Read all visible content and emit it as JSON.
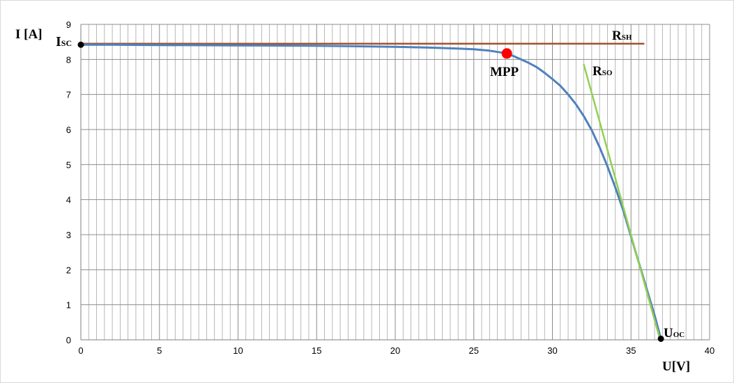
{
  "chart_data": {
    "type": "line",
    "title": "",
    "xlabel": "U[V]",
    "ylabel": "I [A]",
    "xlim": [
      0,
      40
    ],
    "ylim": [
      0,
      9
    ],
    "x_ticks": [
      "0",
      "5",
      "10",
      "15",
      "20",
      "25",
      "30",
      "35",
      "40"
    ],
    "y_ticks": [
      "0",
      "1",
      "2",
      "3",
      "4",
      "5",
      "6",
      "7",
      "8",
      "9"
    ],
    "grid": true,
    "series": [
      {
        "color": "#4f81bd",
        "x": [
          0,
          2,
          5,
          10,
          15,
          20,
          22,
          24,
          25,
          26,
          27,
          27.5,
          28,
          28.5,
          29,
          29.5,
          30,
          30.5,
          31,
          31.5,
          32,
          32.5,
          33,
          33.5,
          34,
          34.5,
          35,
          35.5,
          36,
          36.5,
          36.9
        ],
        "y": [
          8.42,
          8.42,
          8.41,
          8.4,
          8.39,
          8.36,
          8.34,
          8.31,
          8.29,
          8.25,
          8.18,
          8.1,
          8.0,
          7.9,
          7.78,
          7.62,
          7.44,
          7.25,
          7.0,
          6.72,
          6.38,
          5.98,
          5.5,
          4.95,
          4.35,
          3.7,
          2.95,
          2.2,
          1.45,
          0.7,
          0.03
        ]
      },
      {
        "name": "RSH",
        "color": "#a0522d",
        "x": [
          0,
          35.8
        ],
        "y": [
          8.45,
          8.45
        ]
      },
      {
        "name": "RSO",
        "color": "#92d050",
        "x": [
          32.0,
          36.85
        ],
        "y": [
          7.85,
          0
        ]
      }
    ],
    "points": [
      {
        "name": "ISC",
        "x": 0,
        "y": 8.42,
        "color": "#000000"
      },
      {
        "name": "MPP",
        "x": 27.1,
        "y": 8.17,
        "color": "#ff0000"
      },
      {
        "name": "UOC",
        "x": 36.9,
        "y": 0.03,
        "color": "#000000"
      }
    ],
    "annotations": {
      "isc": {
        "main": "I",
        "sub": "SC"
      },
      "mpp": "MPP",
      "rsh": {
        "main": "R",
        "sub": "SH"
      },
      "rso": {
        "main": "R",
        "sub": "SO"
      },
      "uoc": {
        "main": "U",
        "sub": "OC"
      }
    }
  }
}
